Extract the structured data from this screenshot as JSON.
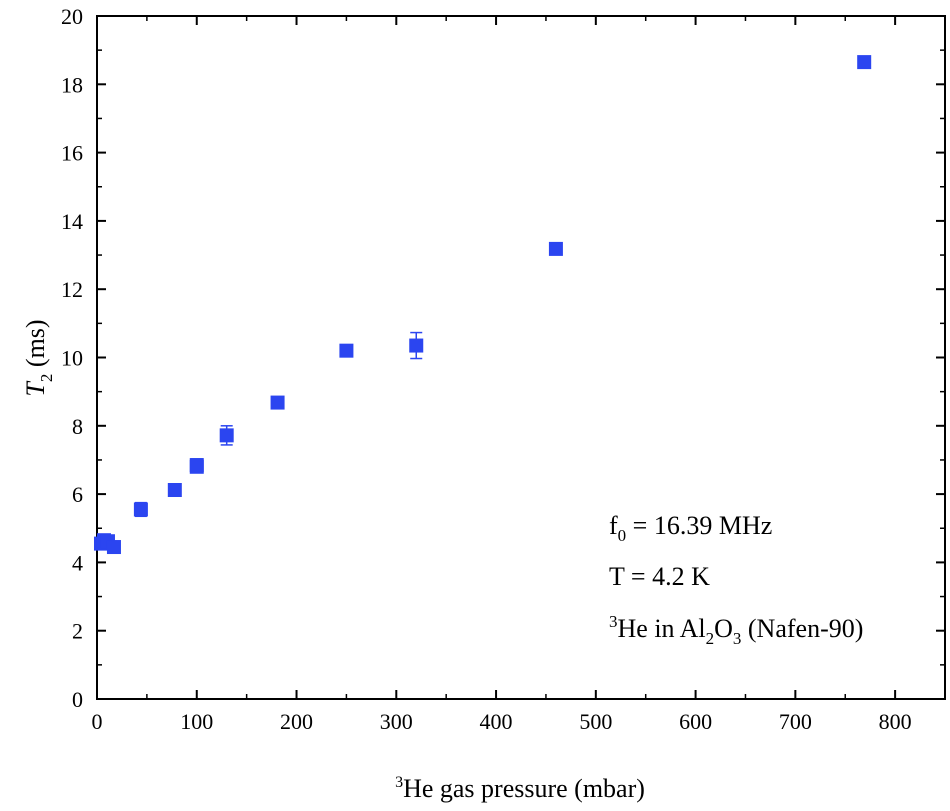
{
  "chart_data": {
    "type": "scatter",
    "title": "",
    "xlabel": {
      "superscript": "3",
      "text": "He gas pressure (mbar)"
    },
    "ylabel": {
      "symbol": "T",
      "subscript": "2",
      "units": " (ms)"
    },
    "xlim": [
      0,
      850
    ],
    "ylim": [
      0,
      20
    ],
    "xticks": [
      0,
      100,
      200,
      300,
      400,
      500,
      600,
      700,
      800
    ],
    "yticks": [
      0,
      2,
      4,
      6,
      8,
      10,
      12,
      14,
      16,
      18,
      20
    ],
    "grid": false,
    "marker_color": "#2b45f0",
    "series": [
      {
        "name": "T2",
        "points": [
          {
            "x": 4,
            "y": 4.55,
            "err": 0.12
          },
          {
            "x": 7,
            "y": 4.65,
            "err": 0.12
          },
          {
            "x": 11,
            "y": 4.62,
            "err": 0.12
          },
          {
            "x": 17,
            "y": 4.45,
            "err": 0.1
          },
          {
            "x": 44,
            "y": 5.55,
            "err": 0.2
          },
          {
            "x": 78,
            "y": 6.12,
            "err": 0.1
          },
          {
            "x": 100,
            "y": 6.85,
            "err": 0.18
          },
          {
            "x": 100,
            "y": 6.8,
            "err": 0.15
          },
          {
            "x": 130,
            "y": 7.72,
            "err": 0.28
          },
          {
            "x": 181,
            "y": 8.68,
            "err": 0.1
          },
          {
            "x": 250,
            "y": 10.2,
            "err": 0.1
          },
          {
            "x": 320,
            "y": 10.35,
            "err": 0.38
          },
          {
            "x": 460,
            "y": 13.18,
            "err": 0.1
          },
          {
            "x": 769,
            "y": 18.65,
            "err": 0.1
          }
        ]
      }
    ],
    "annotations": [
      {
        "main": "f",
        "sub": "0",
        "rest": " = 16.39 MHz"
      },
      {
        "main": "T = 4.2 K"
      },
      {
        "sup": "3",
        "a": "He in Al",
        "sub1": "2",
        "b": "O",
        "sub2": "3",
        "c": " (Nafen-90)"
      }
    ]
  }
}
